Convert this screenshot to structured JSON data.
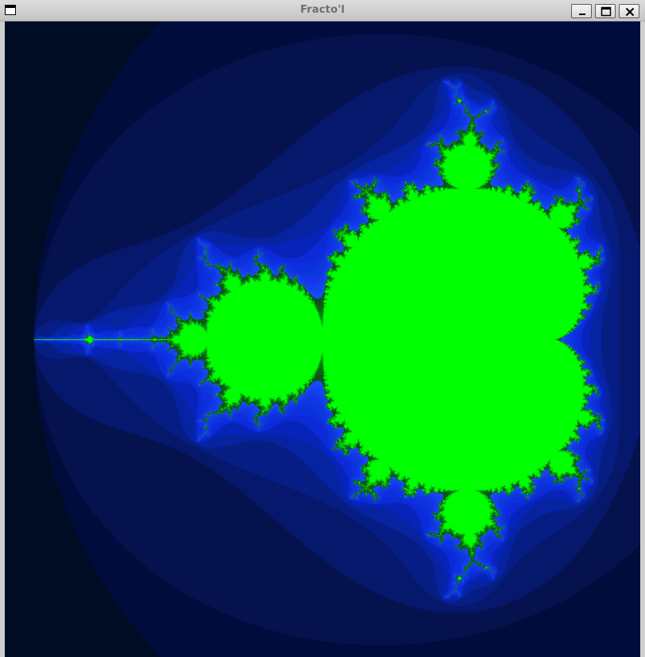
{
  "window": {
    "title": "Fracto'l",
    "menu_icon": "window-menu-icon",
    "buttons": [
      {
        "name": "minimize-button",
        "icon": "minimize-icon"
      },
      {
        "name": "maximize-button",
        "icon": "maximize-icon"
      },
      {
        "name": "close-button",
        "icon": "close-icon"
      }
    ]
  },
  "fractal": {
    "type": "mandelbrot",
    "center": [
      -0.75,
      0.0
    ],
    "span": 2.75,
    "max_iterations": 60,
    "colors": {
      "inside": "#00ff00",
      "outer": "#000a26",
      "band_low": "#03124f",
      "band_mid": "#0a2bd6",
      "band_high": "#1a4bff",
      "edge": "#0b4a1a"
    }
  }
}
